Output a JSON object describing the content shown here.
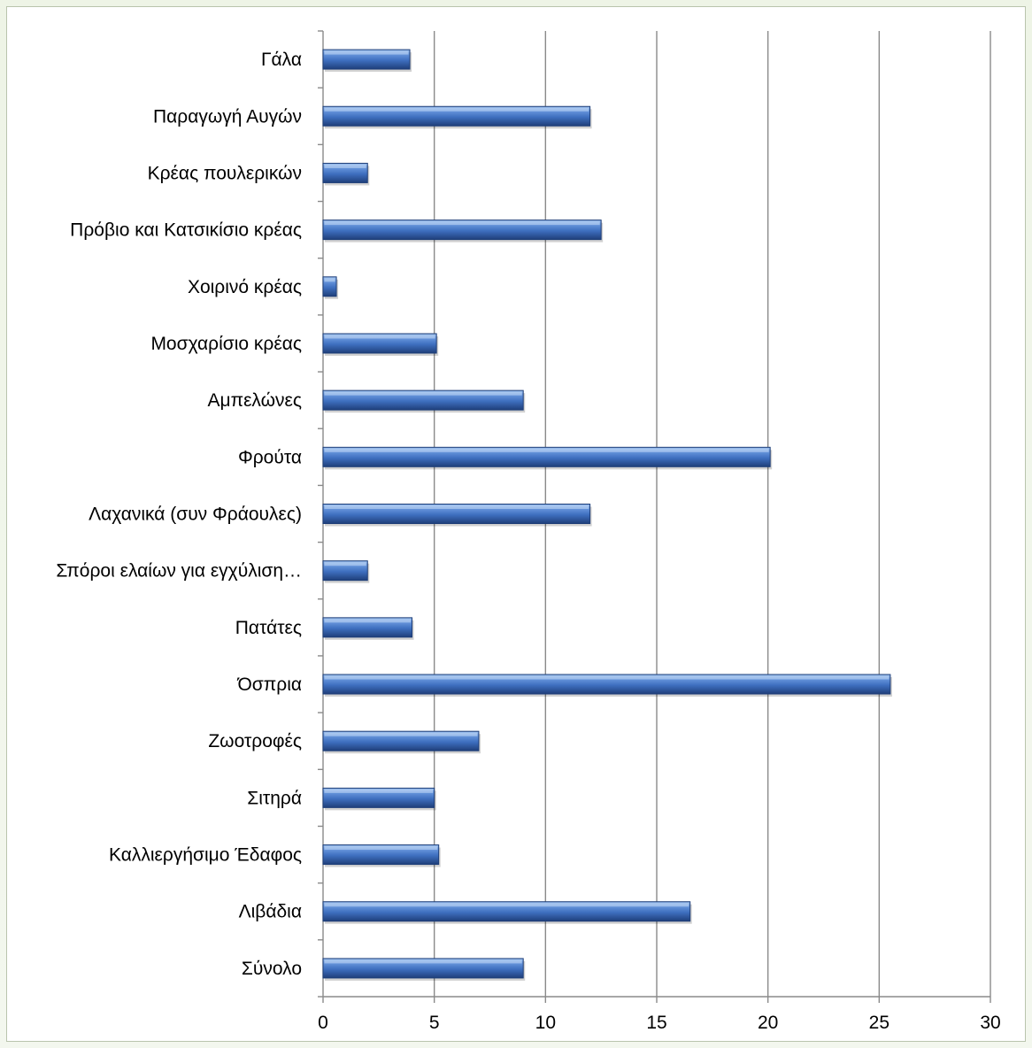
{
  "chart_data": {
    "type": "bar",
    "orientation": "horizontal",
    "title": "",
    "xlabel": "",
    "ylabel": "",
    "categories": [
      "Γάλα",
      "Παραγωγή Αυγών",
      "Κρέας πουλερικών",
      "Πρόβιο και Κατσικίσιο κρέας",
      "Χοιρινό κρέας",
      "Μοσχαρίσιο κρέας",
      "Αμπελώνες",
      "Φρούτα",
      "Λαχανικά (συν Φράουλες)",
      "Σπόροι ελαίων για εγχύλιση…",
      "Πατάτες",
      "Όσπρια",
      "Ζωοτροφές",
      "Σιτηρά",
      "Καλλιεργήσιμο Έδαφος",
      "Λιβάδια",
      "Σύνολο"
    ],
    "values": [
      3.9,
      12.0,
      2.0,
      12.5,
      0.6,
      5.1,
      9.0,
      20.1,
      12.0,
      2.0,
      4.0,
      25.5,
      7.0,
      5.0,
      5.2,
      16.5,
      9.0
    ],
    "xlim": [
      0,
      30
    ],
    "xticks": [
      "0",
      "5",
      "10",
      "15",
      "20",
      "25",
      "30"
    ],
    "grid": true,
    "legend": "none",
    "bar_color": "#4a7ec9"
  }
}
